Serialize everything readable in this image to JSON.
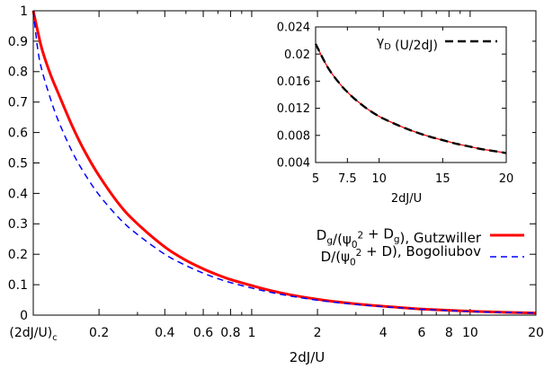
{
  "chart_data": [
    {
      "id": "main",
      "type": "line",
      "xscale": "log",
      "xlabel": "2dJ/U",
      "ylabel": "",
      "xlim": [
        0.1,
        20
      ],
      "ylim": [
        0,
        1
      ],
      "xticks": [
        {
          "value": 0.1,
          "label": "(2dJ/U)c"
        },
        {
          "value": 0.2,
          "label": "0.2"
        },
        {
          "value": 0.4,
          "label": "0.4"
        },
        {
          "value": 0.6,
          "label": "0.6"
        },
        {
          "value": 0.8,
          "label": "0.8"
        },
        {
          "value": 1,
          "label": "1"
        },
        {
          "value": 2,
          "label": "2"
        },
        {
          "value": 4,
          "label": "4"
        },
        {
          "value": 6,
          "label": "6"
        },
        {
          "value": 8,
          "label": "8"
        },
        {
          "value": 10,
          "label": "10"
        },
        {
          "value": 20,
          "label": "20"
        }
      ],
      "yticks": [
        {
          "value": 0,
          "label": "0"
        },
        {
          "value": 0.1,
          "label": "0.1"
        },
        {
          "value": 0.2,
          "label": "0.2"
        },
        {
          "value": 0.3,
          "label": "0.3"
        },
        {
          "value": 0.4,
          "label": "0.4"
        },
        {
          "value": 0.5,
          "label": "0.5"
        },
        {
          "value": 0.6,
          "label": "0.6"
        },
        {
          "value": 0.7,
          "label": "0.7"
        },
        {
          "value": 0.8,
          "label": "0.8"
        },
        {
          "value": 0.9,
          "label": "0.9"
        },
        {
          "value": 1,
          "label": "1"
        }
      ],
      "legend_position": "bottom-right",
      "series": [
        {
          "name": "Dg/(ψ02 + Dg), Gutzwiller",
          "color": "#ff0000",
          "style": "solid",
          "x": [
            0.1,
            0.105,
            0.11,
            0.12,
            0.13,
            0.15,
            0.17,
            0.2,
            0.25,
            0.3,
            0.4,
            0.5,
            0.6,
            0.7,
            0.8,
            1.0,
            1.2,
            1.5,
            2.0,
            2.5,
            3.0,
            4.0,
            5.0,
            6.0,
            8.0,
            10,
            12,
            15,
            20
          ],
          "y": [
            1.0,
            0.93,
            0.87,
            0.79,
            0.73,
            0.625,
            0.545,
            0.458,
            0.36,
            0.3,
            0.224,
            0.18,
            0.152,
            0.132,
            0.117,
            0.097,
            0.082,
            0.067,
            0.052,
            0.043,
            0.037,
            0.029,
            0.024,
            0.02,
            0.016,
            0.013,
            0.011,
            0.009,
            0.007
          ]
        },
        {
          "name": "D/(ψ02 + D), Bogoliubov",
          "color": "#0000ff",
          "style": "dashed",
          "x": [
            0.1,
            0.105,
            0.11,
            0.12,
            0.13,
            0.15,
            0.17,
            0.2,
            0.25,
            0.3,
            0.4,
            0.5,
            0.6,
            0.7,
            0.8,
            1.0,
            1.2,
            1.5,
            2.0,
            2.5,
            3.0,
            4.0,
            5.0,
            6.0,
            8.0,
            10,
            12,
            15,
            20
          ],
          "y": [
            1.0,
            0.87,
            0.8,
            0.71,
            0.64,
            0.54,
            0.47,
            0.395,
            0.315,
            0.265,
            0.2,
            0.163,
            0.138,
            0.12,
            0.107,
            0.089,
            0.076,
            0.063,
            0.049,
            0.041,
            0.035,
            0.028,
            0.023,
            0.019,
            0.015,
            0.012,
            0.01,
            0.009,
            0.007
          ]
        }
      ]
    },
    {
      "id": "inset",
      "type": "line",
      "xlabel": "2dJ/U",
      "ylabel": "",
      "xlim": [
        5,
        20
      ],
      "ylim": [
        0.004,
        0.024
      ],
      "xticks": [
        {
          "value": 5,
          "label": "5"
        },
        {
          "value": 7.5,
          "label": "7.5"
        },
        {
          "value": 10,
          "label": "10"
        },
        {
          "value": 15,
          "label": "15"
        },
        {
          "value": 20,
          "label": "20"
        }
      ],
      "yticks": [
        {
          "value": 0.004,
          "label": "0.004"
        },
        {
          "value": 0.008,
          "label": "0.008"
        },
        {
          "value": 0.012,
          "label": "0.012"
        },
        {
          "value": 0.016,
          "label": "0.016"
        },
        {
          "value": 0.02,
          "label": "0.02"
        },
        {
          "value": 0.024,
          "label": "0.024"
        }
      ],
      "legend_position": "top-right",
      "series": [
        {
          "name": "",
          "color": "#ff0000",
          "style": "solid",
          "x": [
            5,
            6,
            7,
            7.5,
            8,
            9,
            10,
            11,
            12,
            13,
            14,
            15,
            16,
            17,
            18,
            19,
            20
          ],
          "y": [
            0.0215,
            0.0179,
            0.0154,
            0.0144,
            0.0135,
            0.012,
            0.0108,
            0.0099,
            0.0091,
            0.0084,
            0.0078,
            0.0073,
            0.0068,
            0.0064,
            0.006,
            0.0057,
            0.0054
          ]
        },
        {
          "name": "γD (U/2dJ)",
          "color": "#000000",
          "style": "dashed",
          "x": [
            5,
            6,
            7,
            7.5,
            8,
            9,
            10,
            11,
            12,
            13,
            14,
            15,
            16,
            17,
            18,
            19,
            20
          ],
          "y": [
            0.0215,
            0.0179,
            0.0154,
            0.0144,
            0.0135,
            0.012,
            0.0108,
            0.0099,
            0.0091,
            0.0084,
            0.0078,
            0.0073,
            0.0068,
            0.0064,
            0.006,
            0.0057,
            0.0054
          ]
        }
      ]
    }
  ]
}
